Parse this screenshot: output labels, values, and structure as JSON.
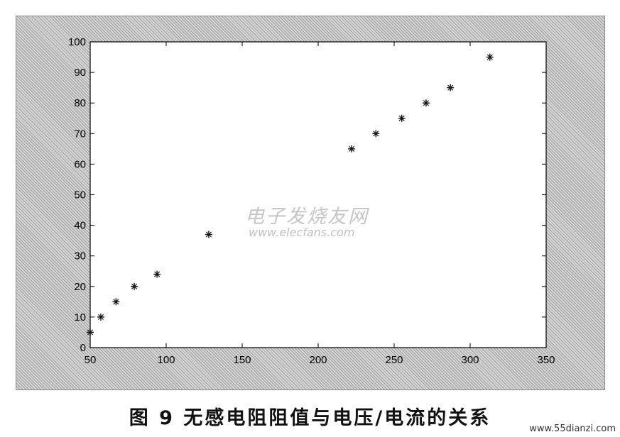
{
  "caption": "图 9   无感电阻阻值与电压/电流的关系",
  "watermark": {
    "cn": "电子发烧友网",
    "url": "www.elecfans.com"
  },
  "site_mark": "www.55dianzi.com",
  "colors": {
    "frame": "#c9c9c9",
    "plot_bg": "#ffffff",
    "marker": "#111111",
    "axis": "#000000"
  },
  "chart_data": {
    "type": "scatter",
    "title": "",
    "xlabel": "",
    "ylabel": "",
    "xlim": [
      50,
      350
    ],
    "ylim": [
      0,
      100
    ],
    "xticks": [
      50,
      100,
      150,
      200,
      250,
      300,
      350
    ],
    "yticks": [
      0,
      10,
      20,
      30,
      40,
      50,
      60,
      70,
      80,
      90,
      100
    ],
    "marker": "asterisk",
    "grid": false,
    "series": [
      {
        "points": [
          [
            50,
            5
          ],
          [
            57,
            10
          ],
          [
            67,
            15
          ],
          [
            79,
            20
          ],
          [
            94,
            24
          ],
          [
            128,
            37
          ],
          [
            222,
            65
          ],
          [
            238,
            70
          ],
          [
            255,
            75
          ],
          [
            271,
            80
          ],
          [
            287,
            85
          ],
          [
            313,
            95
          ]
        ]
      }
    ]
  }
}
